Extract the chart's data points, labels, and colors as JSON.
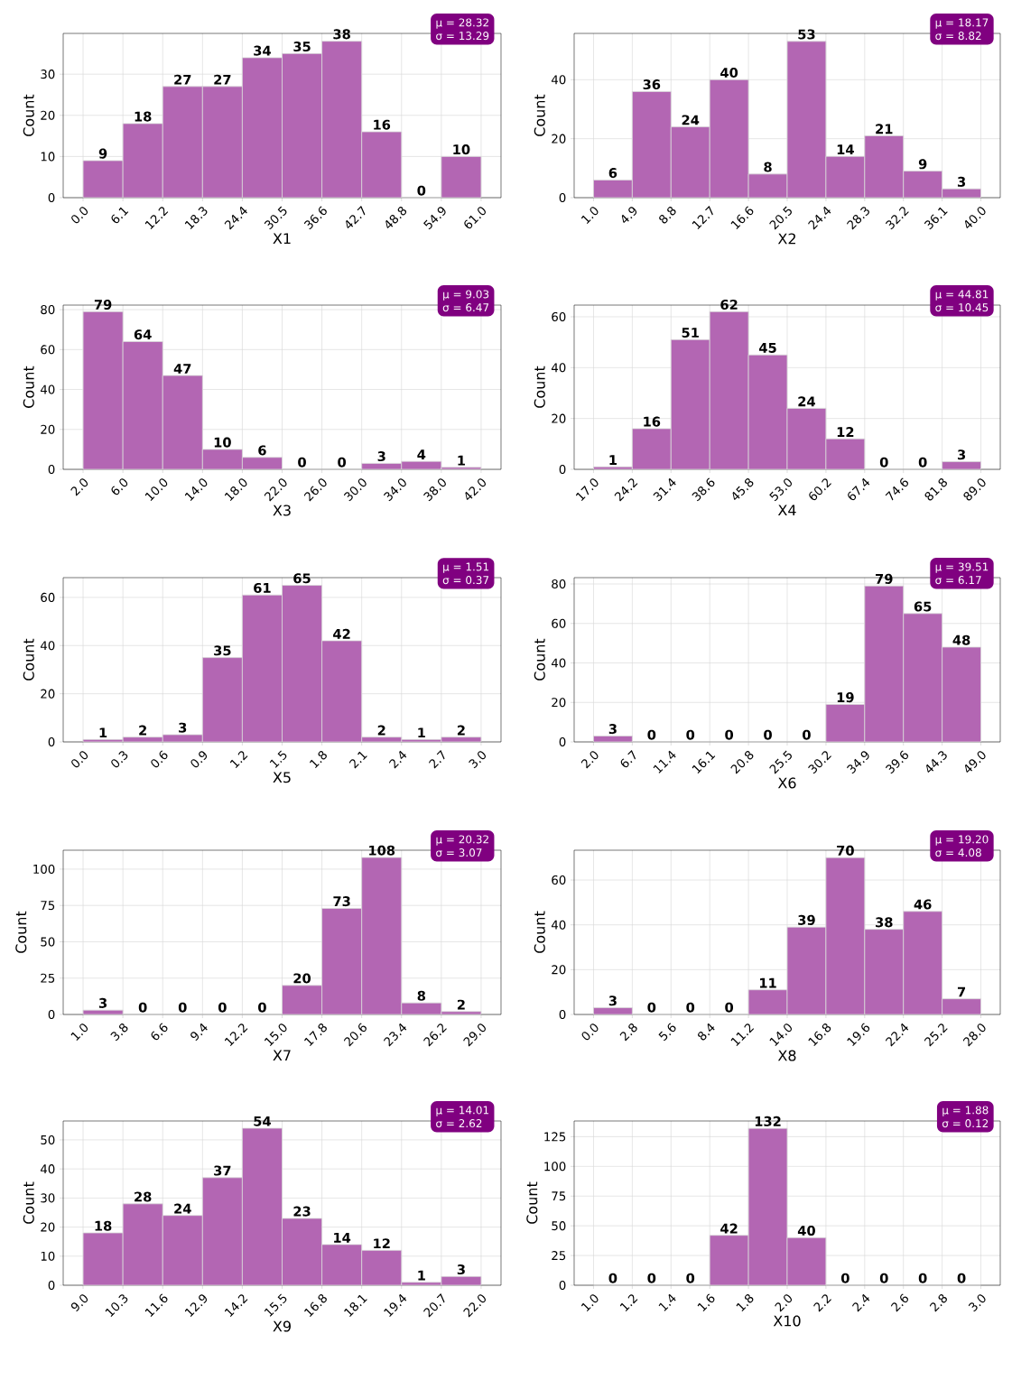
{
  "chart_data": [
    {
      "type": "histogram",
      "xlabel": "X1",
      "ylabel": "Count",
      "color": "#b366b3",
      "grid": true,
      "data_labels": true,
      "annotations": [
        "μ = 28.32",
        "σ = 13.29"
      ],
      "bins": [
        0.0,
        6.1,
        12.2,
        18.3,
        24.4,
        30.5,
        36.6,
        42.7,
        48.8,
        54.9,
        61.0
      ],
      "values": [
        9,
        18,
        27,
        27,
        34,
        35,
        38,
        16,
        0,
        10
      ],
      "xlim": [
        -3.05,
        64.05
      ],
      "ylim": [
        0,
        39.9
      ],
      "yticks": [
        0,
        10,
        20,
        30
      ],
      "xticks": [
        {
          "value": 0.0,
          "label": "0.0"
        },
        {
          "value": 6.1,
          "label": "6.1"
        },
        {
          "value": 12.2,
          "label": "12.2"
        },
        {
          "value": 18.3,
          "label": "18.3"
        },
        {
          "value": 24.4,
          "label": "24.4"
        },
        {
          "value": 30.5,
          "label": "30.5"
        },
        {
          "value": 36.6,
          "label": "36.6"
        },
        {
          "value": 42.7,
          "label": "42.7"
        },
        {
          "value": 48.8,
          "label": "48.8"
        },
        {
          "value": 54.9,
          "label": "54.9"
        },
        {
          "value": 61.0,
          "label": "61.0"
        }
      ]
    },
    {
      "type": "histogram",
      "xlabel": "X2",
      "ylabel": "Count",
      "color": "#b366b3",
      "grid": true,
      "data_labels": true,
      "annotations": [
        "μ = 18.17",
        "σ = 8.82"
      ],
      "bins": [
        1.0,
        4.9,
        8.8,
        12.7,
        16.6,
        20.5,
        24.4,
        28.3,
        32.2,
        36.1,
        40.0
      ],
      "values": [
        6,
        36,
        24,
        40,
        8,
        53,
        14,
        21,
        9,
        3
      ],
      "xlim": [
        -0.95,
        41.95
      ],
      "ylim": [
        0,
        55.7
      ],
      "yticks": [
        0,
        20,
        40
      ],
      "xticks": [
        {
          "value": 1.0,
          "label": "1.0"
        },
        {
          "value": 4.9,
          "label": "4.9"
        },
        {
          "value": 8.8,
          "label": "8.8"
        },
        {
          "value": 12.7,
          "label": "12.7"
        },
        {
          "value": 16.6,
          "label": "16.6"
        },
        {
          "value": 20.5,
          "label": "20.5"
        },
        {
          "value": 24.4,
          "label": "24.4"
        },
        {
          "value": 28.3,
          "label": "28.3"
        },
        {
          "value": 32.2,
          "label": "32.2"
        },
        {
          "value": 36.1,
          "label": "36.1"
        },
        {
          "value": 40.0,
          "label": "40.0"
        }
      ]
    },
    {
      "type": "histogram",
      "xlabel": "X3",
      "ylabel": "Count",
      "color": "#b366b3",
      "grid": true,
      "data_labels": true,
      "annotations": [
        "μ = 9.03",
        "σ = 6.47"
      ],
      "bins": [
        2.0,
        6.0,
        10.0,
        14.0,
        18.0,
        22.0,
        26.0,
        30.0,
        34.0,
        38.0,
        42.0
      ],
      "values": [
        79,
        64,
        47,
        10,
        6,
        0,
        0,
        3,
        4,
        1
      ],
      "xlim": [
        0,
        44
      ],
      "ylim": [
        0,
        82.3
      ],
      "yticks": [
        0,
        20,
        40,
        60,
        80
      ],
      "xticks": [
        {
          "value": 2.0,
          "label": "2.0"
        },
        {
          "value": 6.0,
          "label": "6.0"
        },
        {
          "value": 10.0,
          "label": "10.0"
        },
        {
          "value": 14.0,
          "label": "14.0"
        },
        {
          "value": 18.0,
          "label": "18.0"
        },
        {
          "value": 22.0,
          "label": "22.0"
        },
        {
          "value": 26.0,
          "label": "26.0"
        },
        {
          "value": 30.0,
          "label": "30.0"
        },
        {
          "value": 34.0,
          "label": "34.0"
        },
        {
          "value": 38.0,
          "label": "38.0"
        },
        {
          "value": 42.0,
          "label": "42.0"
        }
      ]
    },
    {
      "type": "histogram",
      "xlabel": "X4",
      "ylabel": "Count",
      "color": "#b366b3",
      "grid": true,
      "data_labels": true,
      "annotations": [
        "μ = 44.81",
        "σ = 10.45"
      ],
      "bins": [
        17.0,
        24.2,
        31.4,
        38.6,
        45.8,
        53.0,
        60.2,
        67.4,
        74.6,
        81.8,
        89.0
      ],
      "values": [
        1,
        16,
        51,
        62,
        45,
        24,
        12,
        0,
        0,
        3
      ],
      "xlim": [
        13.4,
        92.6
      ],
      "ylim": [
        0,
        64.6
      ],
      "yticks": [
        0,
        20,
        40,
        60
      ],
      "xticks": [
        {
          "value": 17.0,
          "label": "17.0"
        },
        {
          "value": 24.2,
          "label": "24.2"
        },
        {
          "value": 31.4,
          "label": "31.4"
        },
        {
          "value": 38.6,
          "label": "38.6"
        },
        {
          "value": 45.8,
          "label": "45.8"
        },
        {
          "value": 53.0,
          "label": "53.0"
        },
        {
          "value": 60.2,
          "label": "60.2"
        },
        {
          "value": 67.4,
          "label": "67.4"
        },
        {
          "value": 74.6,
          "label": "74.6"
        },
        {
          "value": 81.8,
          "label": "81.8"
        },
        {
          "value": 89.0,
          "label": "89.0"
        }
      ]
    },
    {
      "type": "histogram",
      "xlabel": "X5",
      "ylabel": "Count",
      "color": "#b366b3",
      "grid": true,
      "data_labels": true,
      "annotations": [
        "μ = 1.51",
        "σ = 0.37"
      ],
      "bins": [
        0.0,
        0.3,
        0.6,
        0.9,
        1.2,
        1.5,
        1.8,
        2.1,
        2.4,
        2.7,
        3.0
      ],
      "values": [
        1,
        2,
        3,
        35,
        61,
        65,
        42,
        2,
        1,
        2
      ],
      "xlim": [
        -0.15,
        3.15
      ],
      "ylim": [
        0,
        68.2
      ],
      "yticks": [
        0,
        20,
        40,
        60
      ],
      "xticks": [
        {
          "value": 0.0,
          "label": "0.0"
        },
        {
          "value": 0.3,
          "label": "0.3"
        },
        {
          "value": 0.6,
          "label": "0.6"
        },
        {
          "value": 0.9,
          "label": "0.9"
        },
        {
          "value": 1.2,
          "label": "1.2"
        },
        {
          "value": 1.5,
          "label": "1.5"
        },
        {
          "value": 1.8,
          "label": "1.8"
        },
        {
          "value": 2.1,
          "label": "2.1"
        },
        {
          "value": 2.4,
          "label": "2.4"
        },
        {
          "value": 2.7,
          "label": "2.7"
        },
        {
          "value": 3.0,
          "label": "3.0"
        }
      ]
    },
    {
      "type": "histogram",
      "xlabel": "X6",
      "ylabel": "Count",
      "color": "#b366b3",
      "grid": true,
      "data_labels": true,
      "annotations": [
        "μ = 39.51",
        "σ = 6.17"
      ],
      "bins": [
        2.0,
        6.7,
        11.4,
        16.1,
        20.8,
        25.5,
        30.2,
        34.9,
        39.6,
        44.3,
        49.0
      ],
      "values": [
        3,
        0,
        0,
        0,
        0,
        0,
        19,
        79,
        65,
        48
      ],
      "xlim": [
        -0.35,
        51.35
      ],
      "ylim": [
        0,
        83.2
      ],
      "yticks": [
        0,
        20,
        40,
        60,
        80
      ],
      "xticks": [
        {
          "value": 2.0,
          "label": "2.0"
        },
        {
          "value": 6.7,
          "label": "6.7"
        },
        {
          "value": 11.4,
          "label": "11.4"
        },
        {
          "value": 16.1,
          "label": "16.1"
        },
        {
          "value": 20.8,
          "label": "20.8"
        },
        {
          "value": 25.5,
          "label": "25.5"
        },
        {
          "value": 30.2,
          "label": "30.2"
        },
        {
          "value": 34.9,
          "label": "34.9"
        },
        {
          "value": 39.6,
          "label": "39.6"
        },
        {
          "value": 44.3,
          "label": "44.3"
        },
        {
          "value": 49.0,
          "label": "49.0"
        }
      ]
    },
    {
      "type": "histogram",
      "xlabel": "X7",
      "ylabel": "Count",
      "color": "#b366b3",
      "grid": true,
      "data_labels": true,
      "annotations": [
        "μ = 20.32",
        "σ = 3.07"
      ],
      "bins": [
        1.0,
        3.8,
        6.6,
        9.4,
        12.2,
        15.0,
        17.8,
        20.6,
        23.4,
        26.2,
        29.0
      ],
      "values": [
        3,
        0,
        0,
        0,
        0,
        20,
        73,
        108,
        8,
        2
      ],
      "xlim": [
        -0.4,
        30.4
      ],
      "ylim": [
        0,
        113
      ],
      "yticks": [
        0,
        25,
        50,
        75,
        100
      ],
      "xticks": [
        {
          "value": 1.0,
          "label": "1.0"
        },
        {
          "value": 3.8,
          "label": "3.8"
        },
        {
          "value": 6.6,
          "label": "6.6"
        },
        {
          "value": 9.4,
          "label": "9.4"
        },
        {
          "value": 12.2,
          "label": "12.2"
        },
        {
          "value": 15.0,
          "label": "15.0"
        },
        {
          "value": 17.8,
          "label": "17.8"
        },
        {
          "value": 20.6,
          "label": "20.6"
        },
        {
          "value": 23.4,
          "label": "23.4"
        },
        {
          "value": 26.2,
          "label": "26.2"
        },
        {
          "value": 29.0,
          "label": "29.0"
        }
      ]
    },
    {
      "type": "histogram",
      "xlabel": "X8",
      "ylabel": "Count",
      "color": "#b366b3",
      "grid": true,
      "data_labels": true,
      "annotations": [
        "μ = 19.20",
        "σ = 4.08"
      ],
      "bins": [
        0.0,
        2.8,
        5.6,
        8.4,
        11.2,
        14.0,
        16.8,
        19.6,
        22.4,
        25.2,
        28.0
      ],
      "values": [
        3,
        0,
        0,
        0,
        11,
        39,
        70,
        38,
        46,
        7
      ],
      "xlim": [
        -1.4,
        29.4
      ],
      "ylim": [
        0,
        73.3
      ],
      "yticks": [
        0,
        20,
        40,
        60
      ],
      "xticks": [
        {
          "value": 0.0,
          "label": "0.0"
        },
        {
          "value": 2.8,
          "label": "2.8"
        },
        {
          "value": 5.6,
          "label": "5.6"
        },
        {
          "value": 8.4,
          "label": "8.4"
        },
        {
          "value": 11.2,
          "label": "11.2"
        },
        {
          "value": 14.0,
          "label": "14.0"
        },
        {
          "value": 16.8,
          "label": "16.8"
        },
        {
          "value": 19.6,
          "label": "19.6"
        },
        {
          "value": 22.4,
          "label": "22.4"
        },
        {
          "value": 25.2,
          "label": "25.2"
        },
        {
          "value": 28.0,
          "label": "28.0"
        }
      ]
    },
    {
      "type": "histogram",
      "xlabel": "X9",
      "ylabel": "Count",
      "color": "#b366b3",
      "grid": true,
      "data_labels": true,
      "annotations": [
        "μ = 14.01",
        "σ = 2.62"
      ],
      "bins": [
        9.0,
        10.3,
        11.6,
        12.9,
        14.2,
        15.5,
        16.8,
        18.1,
        19.4,
        20.7,
        22.0
      ],
      "values": [
        18,
        28,
        24,
        37,
        54,
        23,
        14,
        12,
        1,
        3
      ],
      "xlim": [
        8.35,
        22.65
      ],
      "ylim": [
        0,
        56.5
      ],
      "yticks": [
        0,
        10,
        20,
        30,
        40,
        50
      ],
      "xticks": [
        {
          "value": 9.0,
          "label": "9.0"
        },
        {
          "value": 10.3,
          "label": "10.3"
        },
        {
          "value": 11.6,
          "label": "11.6"
        },
        {
          "value": 12.9,
          "label": "12.9"
        },
        {
          "value": 14.2,
          "label": "14.2"
        },
        {
          "value": 15.5,
          "label": "15.5"
        },
        {
          "value": 16.8,
          "label": "16.8"
        },
        {
          "value": 18.1,
          "label": "18.1"
        },
        {
          "value": 19.4,
          "label": "19.4"
        },
        {
          "value": 20.7,
          "label": "20.7"
        },
        {
          "value": 22.0,
          "label": "22.0"
        }
      ]
    },
    {
      "type": "histogram",
      "xlabel": "X10",
      "ylabel": "Count",
      "color": "#b366b3",
      "grid": true,
      "data_labels": true,
      "annotations": [
        "μ = 1.88",
        "σ = 0.12"
      ],
      "bins": [
        1.0,
        1.2,
        1.4,
        1.6,
        1.8,
        2.0,
        2.2,
        2.4,
        2.6,
        2.8,
        3.0
      ],
      "values": [
        0,
        0,
        0,
        42,
        132,
        40,
        0,
        0,
        0,
        0
      ],
      "xlim": [
        0.9,
        3.1
      ],
      "ylim": [
        0,
        138.2
      ],
      "yticks": [
        0,
        25,
        50,
        75,
        100,
        125
      ],
      "xticks": [
        {
          "value": 1.0,
          "label": "1.0"
        },
        {
          "value": 1.2,
          "label": "1.2"
        },
        {
          "value": 1.4,
          "label": "1.4"
        },
        {
          "value": 1.6,
          "label": "1.6"
        },
        {
          "value": 1.8,
          "label": "1.8"
        },
        {
          "value": 2.0,
          "label": "2.0"
        },
        {
          "value": 2.2,
          "label": "2.2"
        },
        {
          "value": 2.4,
          "label": "2.4"
        },
        {
          "value": 2.6,
          "label": "2.6"
        },
        {
          "value": 2.8,
          "label": "2.8"
        },
        {
          "value": 3.0,
          "label": "3.0"
        }
      ]
    }
  ]
}
